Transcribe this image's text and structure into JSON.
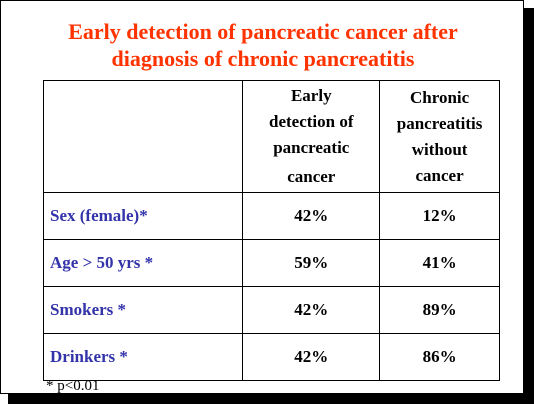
{
  "title": {
    "line1": "Early detection of pancreatic cancer after",
    "line2": "diagnosis of chronic pancreatitis"
  },
  "table": {
    "headers": [
      "",
      "Early detection of pancreatic cancer",
      "Chronic pancreatitis without cancer"
    ],
    "header_lines": {
      "col2": [
        "Early",
        "detection of",
        "pancreatic",
        "cancer"
      ],
      "col3": [
        "Chronic",
        "pancreatitis",
        "without",
        "cancer"
      ]
    },
    "rows": [
      {
        "label": "Sex (female)*",
        "early": "42%",
        "chronic": "12%"
      },
      {
        "label": "Age > 50 yrs *",
        "early": "59%",
        "chronic": "41%"
      },
      {
        "label": "Smokers *",
        "early": "42%",
        "chronic": "89%"
      },
      {
        "label": "Drinkers *",
        "early": "42%",
        "chronic": "86%"
      }
    ]
  },
  "footnote": "* p<0.01",
  "colors": {
    "title": "#ff3300",
    "row_label": "#3333aa",
    "text": "#000000",
    "background": "#ffffff",
    "shadow": "#000000"
  }
}
